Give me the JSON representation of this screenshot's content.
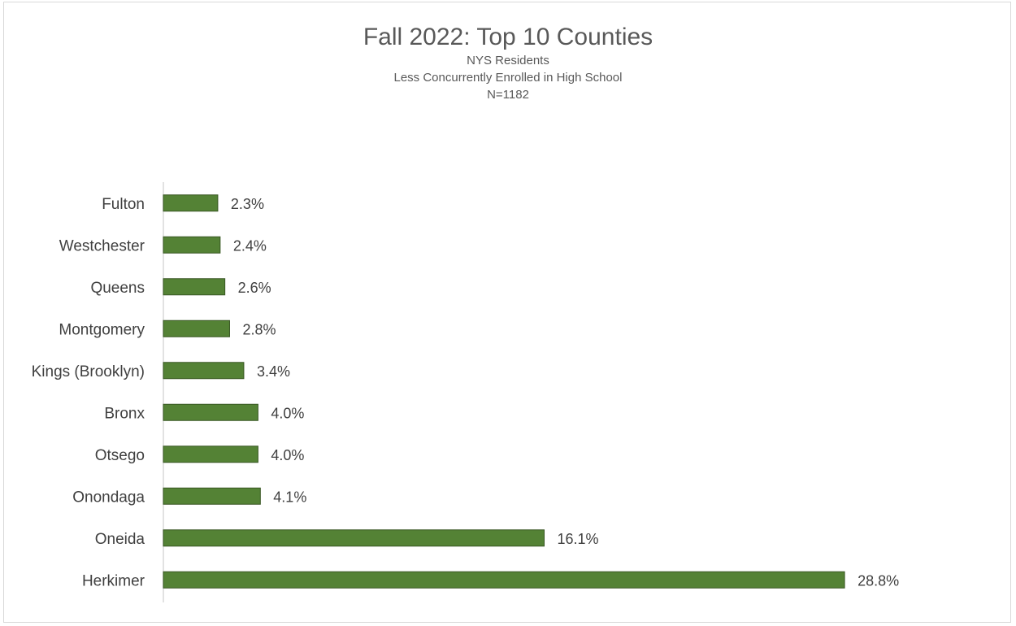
{
  "chart_data": {
    "type": "bar",
    "orientation": "horizontal",
    "title": "Fall 2022: Top 10 Counties",
    "subtitle_lines": [
      "NYS Residents",
      "Less Concurrently Enrolled in  High School",
      "N=1182"
    ],
    "xlabel": "",
    "ylabel": "",
    "grid": false,
    "legend": "none",
    "xlim": [
      0,
      30
    ],
    "bar_color": "#548235",
    "bar_edge_color": "#385723",
    "categories": [
      "Fulton",
      "Westchester",
      "Queens",
      "Montgomery",
      "Kings (Brooklyn)",
      "Bronx",
      "Otsego",
      "Onondaga",
      "Oneida",
      "Herkimer"
    ],
    "values": [
      2.3,
      2.4,
      2.6,
      2.8,
      3.4,
      4.0,
      4.0,
      4.1,
      16.1,
      28.8
    ],
    "value_labels": [
      "2.3%",
      "2.4%",
      "2.6%",
      "2.8%",
      "3.4%",
      "4.0%",
      "4.0%",
      "4.1%",
      "16.1%",
      "28.8%"
    ]
  }
}
